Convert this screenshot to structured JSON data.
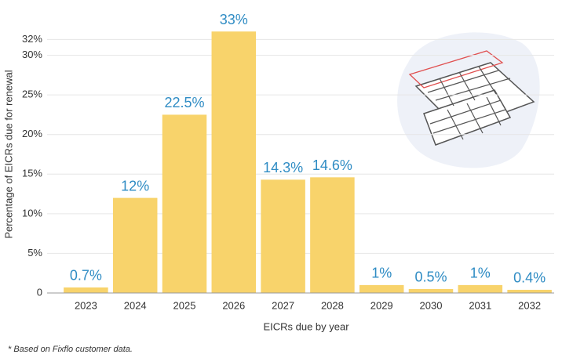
{
  "chart_data": {
    "type": "bar",
    "xlabel": "EICRs due by year",
    "ylabel": "Percentage of EICRs due for renewal",
    "footnote": "* Based on Fixflo customer data.",
    "categories": [
      "2023",
      "2024",
      "2025",
      "2026",
      "2027",
      "2028",
      "2029",
      "2030",
      "2031",
      "2032"
    ],
    "values": [
      0.7,
      12,
      22.5,
      33,
      14.3,
      14.6,
      1,
      0.5,
      1,
      0.4
    ],
    "value_labels": [
      "0.7%",
      "12%",
      "22.5%",
      "33%",
      "14.3%",
      "14.6%",
      "1%",
      "0.5%",
      "1%",
      "0.4%"
    ],
    "color": "#f8d36b",
    "label_color": "#2f8cc4",
    "ylim": [
      0,
      35
    ],
    "yticks": [
      0,
      {
        "value": 5,
        "label": "5%"
      },
      {
        "value": 10,
        "label": "10%"
      },
      {
        "value": 15,
        "label": "15%"
      },
      {
        "value": 20,
        "label": "20%"
      },
      {
        "value": 25,
        "label": "25%"
      },
      {
        "value": 30,
        "label": "30%"
      },
      {
        "value": 32,
        "label": "32%"
      }
    ],
    "grid": true
  }
}
